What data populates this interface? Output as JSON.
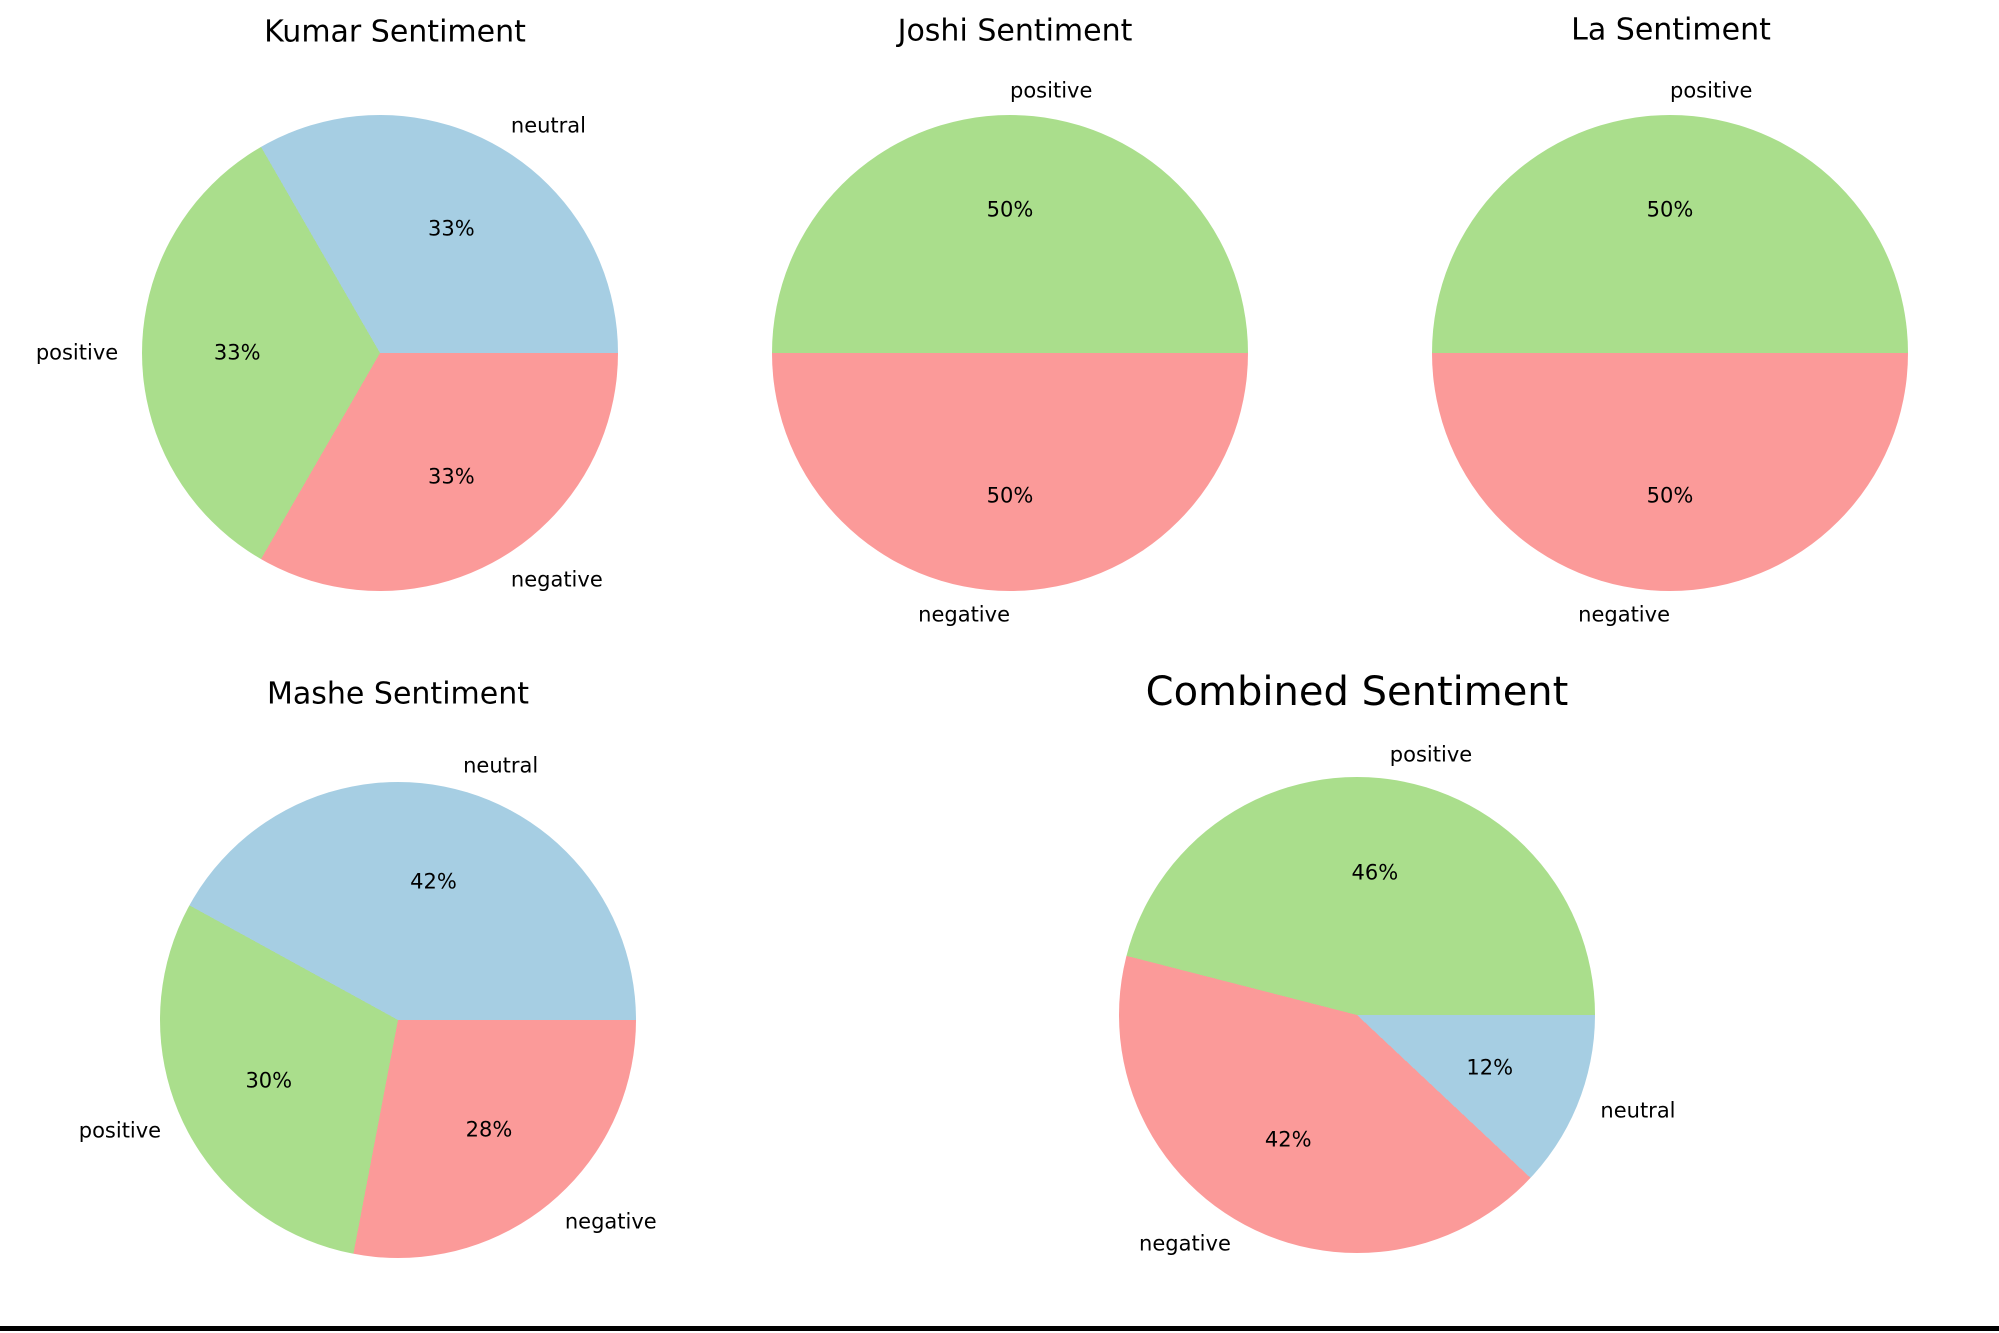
{
  "page": {
    "background": "#ffffff",
    "bottom_edge_color": "#000000"
  },
  "chart_data": [
    {
      "type": "pie",
      "title": "Kumar Sentiment",
      "start_angle": 0,
      "direction": "counterclockwise",
      "slices": [
        {
          "label": "neutral",
          "value": 33.3333,
          "pct_label": "33%",
          "color": "#a6cee3"
        },
        {
          "label": "positive",
          "value": 33.3333,
          "pct_label": "33%",
          "color": "#aade8c"
        },
        {
          "label": "negative",
          "value": 33.3334,
          "pct_label": "33%",
          "color": "#fb9a99"
        }
      ]
    },
    {
      "type": "pie",
      "title": "Joshi Sentiment",
      "start_angle": 0,
      "direction": "counterclockwise",
      "slices": [
        {
          "label": "positive",
          "value": 50,
          "pct_label": "50%",
          "color": "#aade8c"
        },
        {
          "label": "negative",
          "value": 50,
          "pct_label": "50%",
          "color": "#fb9a99"
        }
      ]
    },
    {
      "type": "pie",
      "title": "La Sentiment",
      "start_angle": 0,
      "direction": "counterclockwise",
      "slices": [
        {
          "label": "positive",
          "value": 50,
          "pct_label": "50%",
          "color": "#aade8c"
        },
        {
          "label": "negative",
          "value": 50,
          "pct_label": "50%",
          "color": "#fb9a99"
        }
      ]
    },
    {
      "type": "pie",
      "title": "Mashe Sentiment",
      "start_angle": 0,
      "direction": "counterclockwise",
      "slices": [
        {
          "label": "neutral",
          "value": 42,
          "pct_label": "42%",
          "color": "#a6cee3"
        },
        {
          "label": "positive",
          "value": 30,
          "pct_label": "30%",
          "color": "#aade8c"
        },
        {
          "label": "negative",
          "value": 28,
          "pct_label": "28%",
          "color": "#fb9a99"
        }
      ]
    },
    {
      "type": "pie",
      "title": "Combined Sentiment",
      "start_angle": 0,
      "direction": "counterclockwise",
      "slices": [
        {
          "label": "positive",
          "value": 46,
          "pct_label": "46%",
          "color": "#aade8c"
        },
        {
          "label": "negative",
          "value": 42,
          "pct_label": "42%",
          "color": "#fb9a99"
        },
        {
          "label": "neutral",
          "value": 12,
          "pct_label": "12%",
          "color": "#a6cee3"
        }
      ]
    }
  ]
}
